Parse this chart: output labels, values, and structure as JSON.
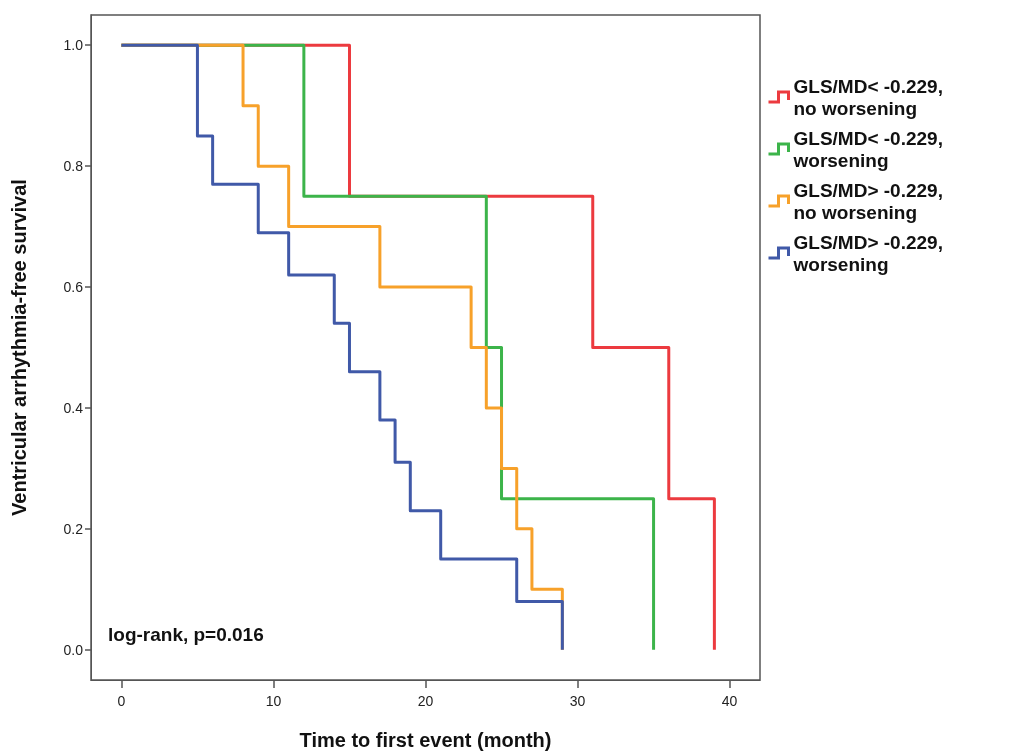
{
  "chart_data": {
    "type": "step",
    "xlabel": "Time to first event (month)",
    "ylabel": "Ventricular arrhythmia-free survival",
    "xlim": [
      -2,
      42
    ],
    "xticks": [
      0,
      10,
      20,
      30,
      40
    ],
    "ylim": [
      -0.05,
      1.05
    ],
    "yticks": [
      {
        "value": 0,
        "label": "0.0"
      },
      {
        "value": 0.2,
        "label": "0.2"
      },
      {
        "value": 0.4,
        "label": "0.4"
      },
      {
        "value": 0.6,
        "label": "0.6"
      },
      {
        "value": 0.8,
        "label": "0.8"
      },
      {
        "value": 1,
        "label": "1.0"
      }
    ],
    "grid": false,
    "legend": "right",
    "marker": "none",
    "line_style": "solid",
    "annotations": [
      "log-rank, p=0.016"
    ],
    "series": [
      {
        "name": "GLS/MD< -0.229, no worsening",
        "color": "#ec3a3f",
        "x": [
          0,
          15,
          31,
          36,
          39
        ],
        "values": [
          1,
          0.75,
          0.5,
          0.25,
          0
        ]
      },
      {
        "name": "GLS/MD< -0.229, worsening",
        "color": "#3cb44a",
        "x": [
          0,
          12,
          24,
          25,
          35
        ],
        "values": [
          1,
          0.75,
          0.5,
          0.25,
          0
        ]
      },
      {
        "name": "GLS/MD> -0.229, no worsening",
        "color": "#f7a12a",
        "x": [
          0,
          8,
          9,
          11,
          17,
          23,
          24,
          25,
          26,
          27,
          29
        ],
        "values": [
          1,
          0.9,
          0.8,
          0.7,
          0.6,
          0.5,
          0.4,
          0.3,
          0.2,
          0.1,
          0
        ]
      },
      {
        "name": "GLS/MD> -0.229, worsening",
        "color": "#4059a8",
        "x": [
          0,
          5,
          6,
          9,
          11,
          14,
          15,
          17,
          18,
          19,
          21,
          26,
          29
        ],
        "values": [
          1,
          0.85,
          0.77,
          0.69,
          0.62,
          0.54,
          0.46,
          0.38,
          0.31,
          0.23,
          0.15,
          0.08,
          0
        ]
      }
    ]
  }
}
